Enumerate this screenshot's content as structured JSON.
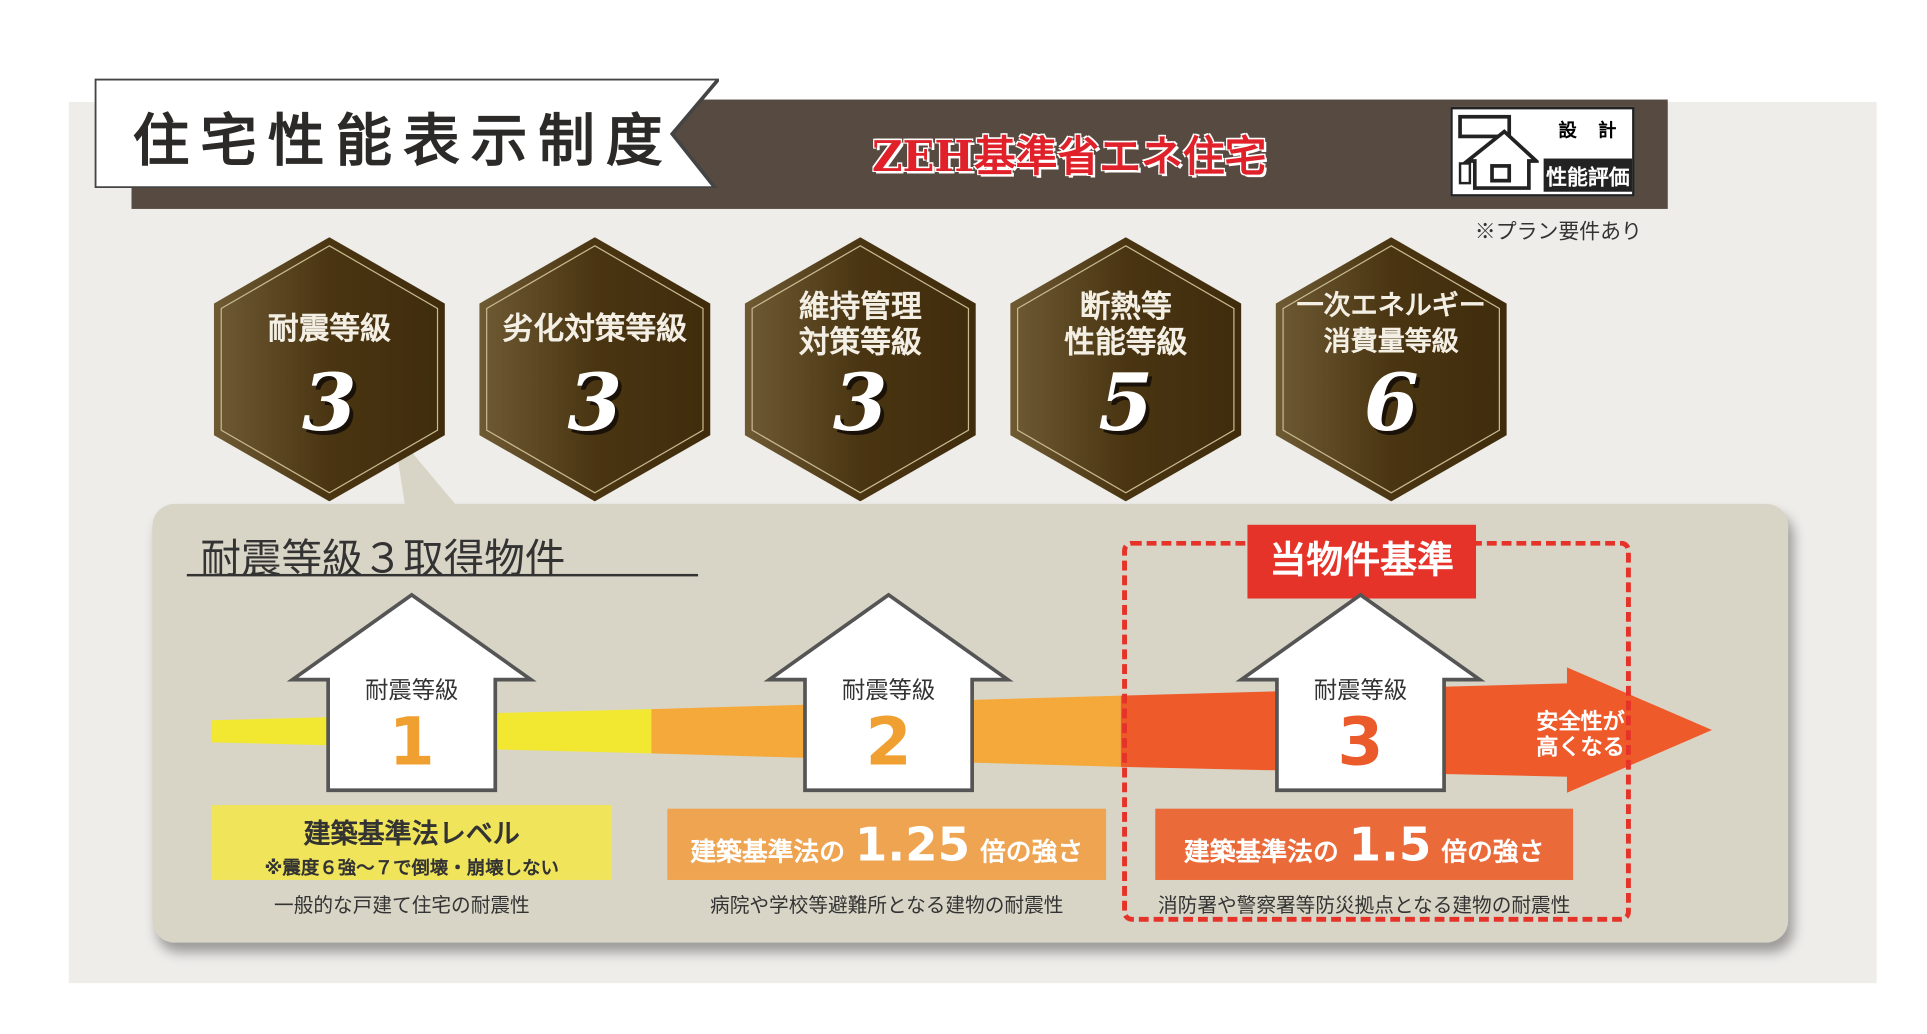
{
  "header": {
    "title": "住宅性能表示制度",
    "zeh": "ZEH基準省エネ住宅",
    "logo": {
      "top": "設 計",
      "bottom": "性能評価"
    },
    "note": "※プラン要件あり"
  },
  "grades": [
    {
      "label": "耐震等級",
      "value": "3"
    },
    {
      "label": "劣化対策等級",
      "value": "3"
    },
    {
      "label": "維持管理\n対策等級",
      "value": "3"
    },
    {
      "label": "断熱等\n性能等級",
      "value": "5"
    },
    {
      "label": "一次エネルギー\n消費量等級",
      "value": "6"
    }
  ],
  "panel": {
    "title": "耐震等級３取得物件",
    "basis_label": "当物件基準",
    "arrow_text": "安全性が\n高くなる",
    "levels": [
      {
        "label": "耐震等級",
        "value": "1",
        "color": "#f0a030",
        "box": "建築基準法レベル",
        "box_sub": "※震度６強〜７で倒壊・崩壊しない",
        "caption": "一般的な戸建て住宅の耐震性"
      },
      {
        "label": "耐震等級",
        "value": "2",
        "color": "#f0a030",
        "box_pre": "建築基準法の",
        "box_num": "1.25",
        "box_post": "倍の強さ",
        "caption": "病院や学校等避難所となる建物の耐震性"
      },
      {
        "label": "耐震等級",
        "value": "3",
        "color": "#ea5a2a",
        "box_pre": "建築基準法の",
        "box_num": "1.5",
        "box_post": "倍の強さ",
        "caption": "消防署や警察署等防災拠点となる建物の耐震性"
      }
    ]
  },
  "colors": {
    "brown": "#574a40",
    "red": "#e6332a",
    "yellow": "#f2e832",
    "orange": "#f5a93a",
    "redorange": "#ef5a2a"
  }
}
